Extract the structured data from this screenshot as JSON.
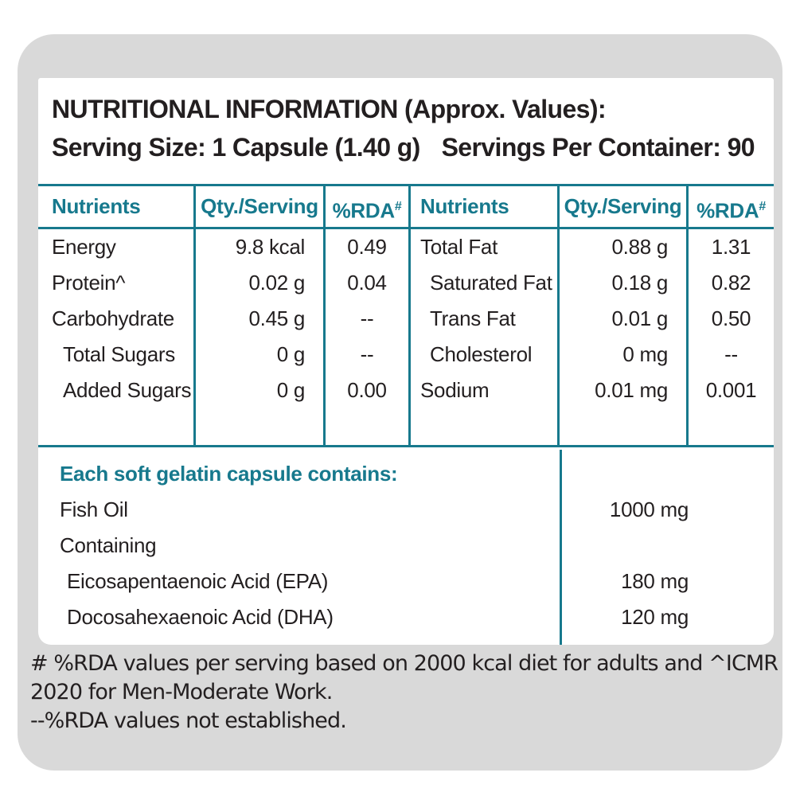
{
  "colors": {
    "accent_teal": "#17798d",
    "text_dark": "#231f20",
    "card_background": "#d9d9d9",
    "panel_background": "#ffffff"
  },
  "header": {
    "title": "NUTRITIONAL INFORMATION (Approx. Values):",
    "serving_size": "Serving Size: 1 Capsule (1.40 g)",
    "servings_per_container": "Servings Per Container: 90"
  },
  "table": {
    "headers": {
      "nutrients": "Nutrients",
      "qty": "Qty./Serving",
      "rda": "%RDA",
      "rda_superscript": "#"
    },
    "left_rows": [
      {
        "nutrient": "Energy",
        "qty": "9.8 kcal",
        "rda": "0.49"
      },
      {
        "nutrient": "Protein^",
        "qty": "0.02 g",
        "rda": "0.04"
      },
      {
        "nutrient": "Carbohydrate",
        "qty": "0.45 g",
        "rda": "--"
      },
      {
        "nutrient": "Total Sugars",
        "qty": "0 g",
        "rda": "--"
      },
      {
        "nutrient": "Added Sugars",
        "qty": "0 g",
        "rda": "0.00"
      }
    ],
    "right_rows": [
      {
        "nutrient": "Total Fat",
        "qty": "0.88 g",
        "rda": "1.31"
      },
      {
        "nutrient": "Saturated Fat",
        "qty": "0.18 g",
        "rda": "0.82"
      },
      {
        "nutrient": "Trans Fat",
        "qty": "0.01 g",
        "rda": "0.50"
      },
      {
        "nutrient": "Cholesterol",
        "qty": "0 mg",
        "rda": "--"
      },
      {
        "nutrient": "Sodium",
        "qty": "0.01 mg",
        "rda": "0.001"
      }
    ]
  },
  "capsule_section": {
    "heading": "Each soft gelatin capsule contains:",
    "rows": [
      {
        "name": "Fish Oil",
        "amount": "1000 mg"
      },
      {
        "name": "Containing",
        "amount": ""
      },
      {
        "name": "Eicosapentaenoic Acid (EPA)",
        "amount": "180 mg"
      },
      {
        "name": "Docosahexaenoic Acid (DHA)",
        "amount": "120 mg"
      }
    ]
  },
  "footnote": {
    "lines": [
      "# %RDA values per serving based on 2000 kcal diet for adults and ^ICMR",
      "2020 for Men-Moderate Work.",
      "--%RDA values not established."
    ]
  }
}
